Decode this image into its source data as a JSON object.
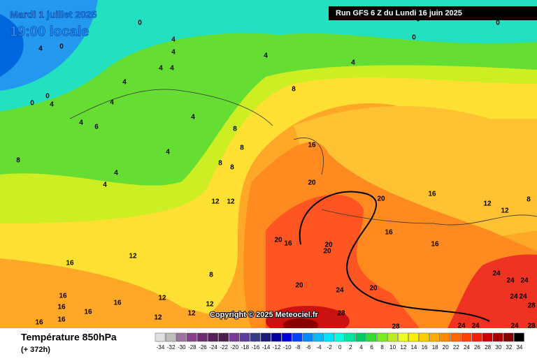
{
  "header": {
    "date": "Mardi 1 juillet 2025",
    "time": "19:00 locale",
    "run": "Run GFS 6 Z du Lundi 16 juin 2025"
  },
  "copyright": "Copyright © 2025 Meteociel.fr",
  "legend": {
    "title": "Température 850hPa",
    "lead_time": "(+ 372h)",
    "values": [
      -34,
      -32,
      -30,
      -28,
      -26,
      -24,
      -22,
      -20,
      -18,
      -16,
      -14,
      -12,
      -10,
      -8,
      -6,
      -4,
      -2,
      0,
      2,
      4,
      6,
      8,
      10,
      12,
      14,
      16,
      18,
      20,
      22,
      24,
      26,
      28,
      30,
      32,
      34
    ],
    "colors": [
      "#e0e0e0",
      "#bdbdbd",
      "#a0709f",
      "#8a3f8a",
      "#6e2c6e",
      "#5a1f5a",
      "#4b1e4b",
      "#7a3a9a",
      "#5c3c9c",
      "#3a3a8a",
      "#1a1a7a",
      "#0000a0",
      "#0000dd",
      "#0044ff",
      "#0088ff",
      "#00bbff",
      "#00e0ff",
      "#00ffe0",
      "#00e6a0",
      "#00cc66",
      "#33dd33",
      "#77ee22",
      "#bbee22",
      "#eeff22",
      "#ffee00",
      "#ffcc00",
      "#ffaa00",
      "#ff8800",
      "#ff6600",
      "#ff4400",
      "#ee2200",
      "#cc0000",
      "#aa0000",
      "#880000",
      "#000000"
    ]
  },
  "contour_labels": [
    0,
    0,
    4,
    4,
    4,
    4,
    4,
    4,
    4,
    4,
    0,
    0,
    0,
    0,
    4,
    0,
    4,
    6,
    4,
    4,
    4,
    4,
    4,
    8,
    8,
    8,
    8,
    8,
    8,
    16,
    20,
    12,
    12,
    20,
    16,
    12,
    12,
    8,
    20,
    16,
    20,
    20,
    16,
    16,
    16,
    12,
    8,
    20,
    24,
    20,
    24,
    24,
    24,
    24,
    24,
    16,
    16,
    16,
    16,
    12,
    12,
    12,
    12,
    16,
    16,
    28,
    28,
    24,
    24,
    24,
    28,
    28
  ]
}
